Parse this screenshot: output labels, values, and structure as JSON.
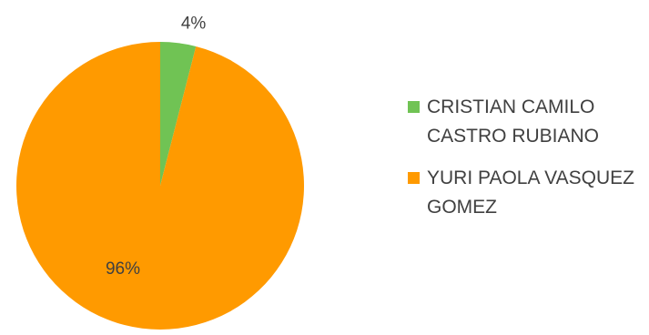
{
  "chart_data": {
    "type": "pie",
    "categories": [
      "CRISTIAN CAMILO CASTRO RUBIANO",
      "YURI PAOLA VASQUEZ GOMEZ"
    ],
    "values": [
      4,
      96
    ],
    "data_labels": [
      "4%",
      "96%"
    ],
    "colors": [
      "#70c354",
      "#ff9a00"
    ],
    "legend_position": "right",
    "title": ""
  }
}
